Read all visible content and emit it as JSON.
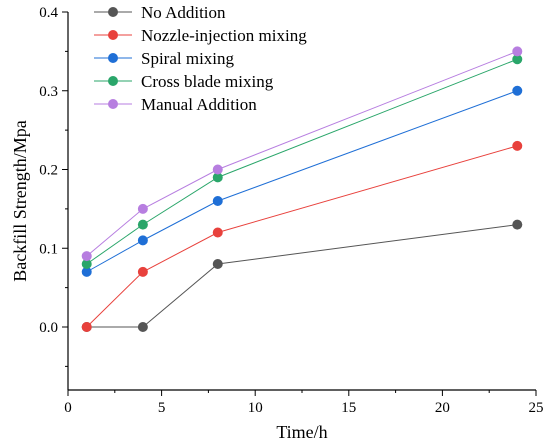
{
  "chart_data": {
    "type": "line",
    "title": "",
    "xlabel": "Time/h",
    "ylabel": "Backfill Strength/Mpa",
    "xlim": [
      0,
      25
    ],
    "ylim": [
      -0.08,
      0.4
    ],
    "xticks": [
      0,
      5,
      10,
      15,
      20,
      25
    ],
    "yticks": [
      0.0,
      0.1,
      0.2,
      0.3,
      0.4
    ],
    "ytick_labels": [
      "0.0",
      "0.1",
      "0.2",
      "0.3",
      "0.4"
    ],
    "grid": false,
    "legend_position": "top-left",
    "x": [
      1,
      4,
      8,
      24
    ],
    "series": [
      {
        "name": "No Addition",
        "color": "#555555",
        "values": [
          0.0,
          0.0,
          0.08,
          0.13
        ]
      },
      {
        "name": "Nozzle-injection mixing",
        "color": "#e8413c",
        "values": [
          0.0,
          0.07,
          0.12,
          0.23
        ]
      },
      {
        "name": "Spiral mixing",
        "color": "#1f6fd6",
        "values": [
          0.07,
          0.11,
          0.16,
          0.3
        ]
      },
      {
        "name": "Cross blade mixing",
        "color": "#2aa66a",
        "values": [
          0.08,
          0.13,
          0.19,
          0.34
        ]
      },
      {
        "name": "Manual Addition",
        "color": "#b77ee0",
        "values": [
          0.09,
          0.15,
          0.2,
          0.35
        ]
      }
    ]
  }
}
